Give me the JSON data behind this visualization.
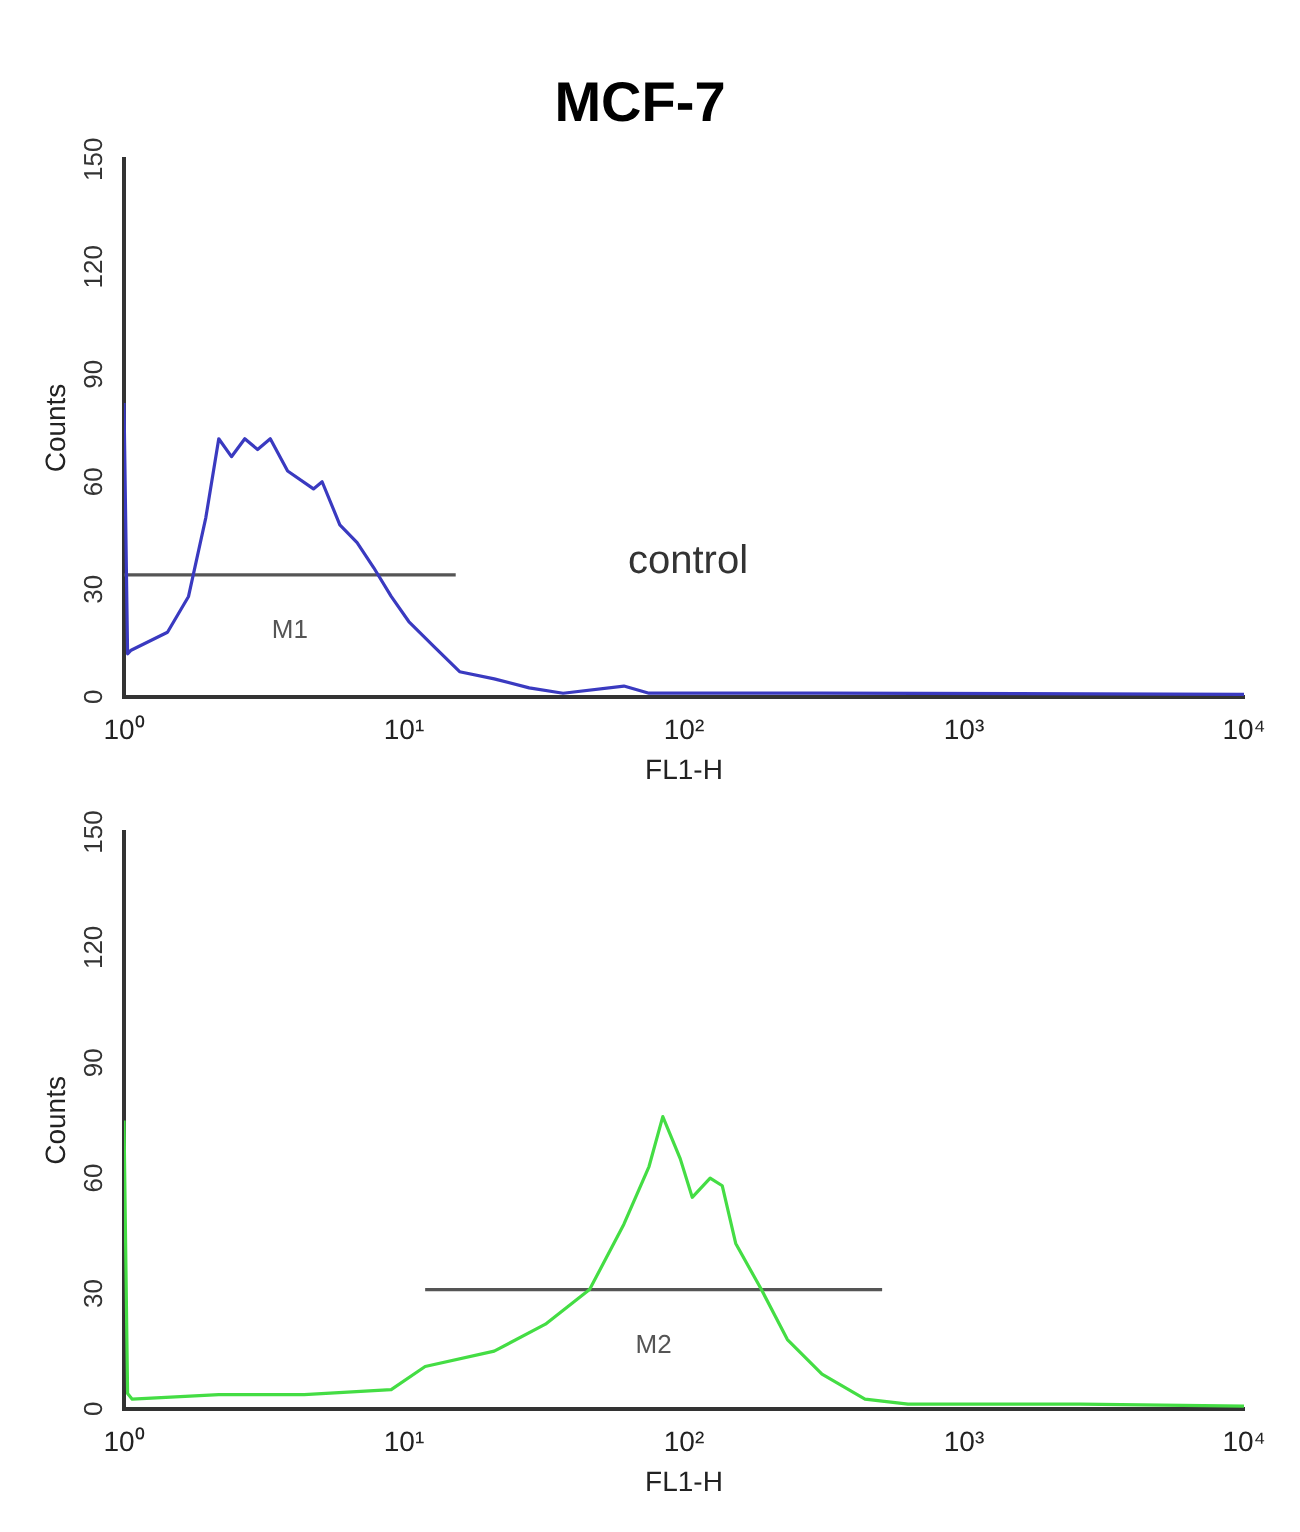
{
  "chart_data": [
    {
      "type": "line",
      "title": "MCF-7",
      "xlabel": "FL1-H",
      "ylabel": "Counts",
      "log": "x",
      "grid": false,
      "marker": "none",
      "xlim": [
        1,
        10000
      ],
      "xticks": [
        {
          "value": 1,
          "label": "10⁰"
        },
        {
          "value": 10,
          "label": "10¹"
        },
        {
          "value": 100,
          "label": "10²"
        },
        {
          "value": 1000,
          "label": "10³"
        },
        {
          "value": 10000,
          "label": "10⁴"
        }
      ],
      "ylim": [
        0,
        150
      ],
      "yticks": [
        0,
        30,
        60,
        90,
        120,
        150
      ],
      "series": [
        {
          "color": "#3a3ac0",
          "x": [
            1,
            1.03,
            1.06,
            1.43,
            1.7,
            1.96,
            2.18,
            2.42,
            2.7,
            3.0,
            3.33,
            3.84,
            4.75,
            5.1,
            5.9,
            6.8,
            7.8,
            9.0,
            10.4,
            12.8,
            15.8,
            21,
            28,
            37,
            61,
            75,
            310,
            10000
          ],
          "values": [
            82,
            12,
            13,
            18,
            28,
            50,
            72,
            67,
            72,
            69,
            72,
            63,
            58,
            60,
            48,
            43,
            36,
            28,
            21,
            14,
            7,
            5,
            2.5,
            1,
            3,
            1,
            1,
            0.7
          ]
        },
        {
          "type": "line",
          "name": "M1",
          "color": "#555555",
          "x": [
            1,
            15.3
          ],
          "values": [
            34,
            34
          ]
        }
      ],
      "annotations": [
        "control"
      ]
    },
    {
      "type": "line",
      "xlabel": "FL1-H",
      "ylabel": "Counts",
      "log": "x",
      "grid": false,
      "marker": "none",
      "xlim": [
        1,
        10000
      ],
      "xticks": [
        {
          "value": 1,
          "label": "10⁰"
        },
        {
          "value": 10,
          "label": "10¹"
        },
        {
          "value": 100,
          "label": "10²"
        },
        {
          "value": 1000,
          "label": "10³"
        },
        {
          "value": 10000,
          "label": "10⁴"
        }
      ],
      "ylim": [
        0,
        150
      ],
      "yticks": [
        0,
        30,
        60,
        90,
        120,
        150
      ],
      "series": [
        {
          "color": "#44dd44",
          "x": [
            1,
            1.03,
            1.07,
            2.18,
            4.4,
            9.0,
            11.9,
            21,
            32,
            46,
            61,
            75,
            84,
            97,
            107,
            124,
            137,
            153,
            189,
            234,
            311,
            443,
            631,
            2600,
            10000
          ],
          "values": [
            75,
            4,
            2.5,
            3.7,
            3.7,
            5,
            11,
            15,
            22,
            31,
            48,
            63,
            76,
            65,
            55,
            60,
            58,
            43,
            31,
            18,
            9,
            2.5,
            1.2,
            1.2,
            0.7
          ]
        },
        {
          "type": "line",
          "name": "M2",
          "color": "#555555",
          "x": [
            11.9,
            510
          ],
          "values": [
            31,
            31
          ]
        }
      ]
    }
  ]
}
